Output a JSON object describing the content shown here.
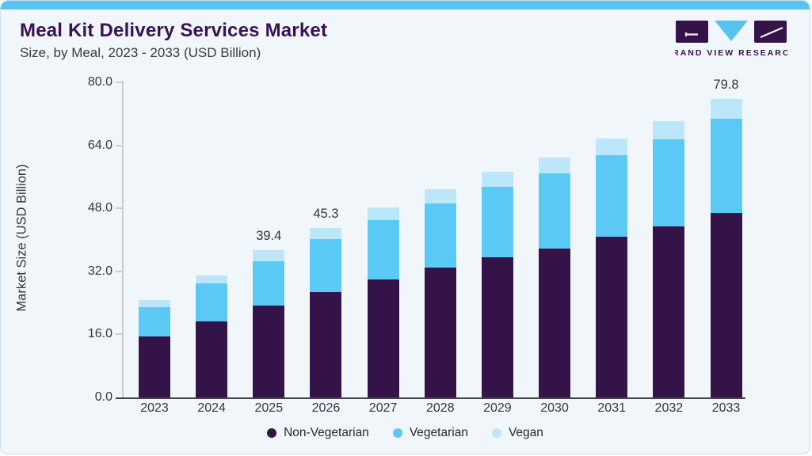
{
  "header": {
    "title": "Meal Kit Delivery Services Market",
    "subtitle": "Size, by Meal, 2023 - 2033 (USD Billion)"
  },
  "logo": {
    "text": "GRAND VIEW RESEARCH"
  },
  "colors": {
    "accent_bar": "#59C3EF",
    "card_background": "#F0F6FA",
    "title_purple": "#3A1154",
    "non_vegetarian": "#341349",
    "vegetarian": "#5BC9F5",
    "vegan": "#BCE6FA",
    "axis_light": "#C6CDD4",
    "axis_baseline": "#45454F",
    "text": "#35353D"
  },
  "chart_data": {
    "type": "bar",
    "stacked": true,
    "title": "Meal Kit Delivery Services Market",
    "subtitle": "Size, by Meal, 2023 - 2033 (USD Billion)",
    "xlabel": "",
    "ylabel": "Market Size (USD Billion)",
    "ylim": [
      0,
      80
    ],
    "ytick_labels": [
      "0.0",
      "16.0",
      "32.0",
      "48.0",
      "64.0",
      "80.0"
    ],
    "ytick_values": [
      0,
      16,
      32,
      48,
      64,
      80
    ],
    "grid": false,
    "legend_position": "bottom",
    "categories": [
      "2023",
      "2024",
      "2025",
      "2026",
      "2027",
      "2028",
      "2029",
      "2030",
      "2031",
      "2032",
      "2033"
    ],
    "series": [
      {
        "name": "Non-Vegetarian",
        "color": "#341349",
        "values": [
          16.3,
          20.4,
          24.5,
          28.1,
          31.6,
          34.8,
          37.5,
          39.9,
          43.0,
          45.7,
          49.4
        ]
      },
      {
        "name": "Vegetarian",
        "color": "#5BC9F5",
        "values": [
          7.8,
          10.2,
          11.9,
          14.3,
          15.8,
          17.2,
          18.9,
          20.0,
          21.8,
          23.3,
          25.2
        ]
      },
      {
        "name": "Vegan",
        "color": "#BCE6FA",
        "values": [
          2.0,
          2.1,
          3.0,
          2.9,
          3.4,
          3.8,
          3.9,
          4.2,
          4.5,
          4.9,
          5.2
        ]
      }
    ],
    "totals": [
      26.1,
      32.7,
      39.4,
      45.3,
      50.8,
      55.8,
      60.3,
      64.1,
      69.3,
      73.9,
      79.8
    ],
    "bar_total_labels": [
      "",
      "",
      "39.4",
      "45.3",
      "",
      "",
      "",
      "",
      "",
      "",
      "79.8"
    ]
  }
}
